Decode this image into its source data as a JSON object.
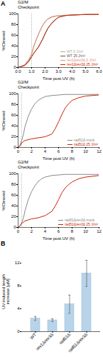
{
  "chart_data": [
    {
      "type": "line",
      "panel_label": "A",
      "title": "G2/M",
      "subtitle": "Checkpoint",
      "xlabel": "Time post UV (h)",
      "ylabel": "%Cleaved",
      "xlim": [
        0,
        6
      ],
      "ylim": [
        0,
        100
      ],
      "xticks": [
        0,
        1,
        2,
        3,
        4,
        5,
        6
      ],
      "yticks": [
        0,
        20,
        40,
        60,
        80,
        100
      ],
      "vline": 1.0,
      "legend": "lower right",
      "series": [
        {
          "name": "WT 0 J/m²",
          "color": "#b0a898",
          "x": [
            0,
            0.5,
            0.8,
            1.0,
            1.1,
            1.2,
            1.4,
            1.6,
            1.8,
            2.0,
            2.2,
            2.5,
            3.0,
            4.0,
            5.0,
            6.0
          ],
          "values": [
            0,
            5,
            15,
            25,
            34,
            42,
            55,
            67,
            77,
            85,
            90,
            94,
            97,
            98,
            99,
            99
          ]
        },
        {
          "name": "WT 25 J/m²",
          "color": "#555555",
          "x": [
            0,
            0.5,
            0.8,
            1.0,
            1.2,
            1.5,
            1.8,
            2.0,
            2.2,
            2.5,
            2.8,
            3.0,
            3.5,
            4.0,
            5.0,
            6.0
          ],
          "values": [
            0,
            4,
            12,
            20,
            28,
            38,
            52,
            63,
            73,
            83,
            90,
            94,
            97,
            98,
            99,
            99
          ]
        },
        {
          "name": "rev1Δrev3Δ 0 J/m²",
          "color": "#e09070",
          "x": [
            0,
            0.5,
            0.8,
            1.0,
            1.1,
            1.2,
            1.4,
            1.6,
            1.8,
            2.0,
            2.2,
            2.5,
            3.0,
            4.0,
            5.0,
            6.0
          ],
          "values": [
            0,
            5,
            15,
            25,
            35,
            43,
            56,
            68,
            78,
            86,
            91,
            95,
            97,
            98,
            99,
            99
          ]
        },
        {
          "name": "rev1Δrev3Δ 25 J/m²",
          "color": "#cc2200",
          "x": [
            0,
            0.5,
            0.8,
            1.0,
            1.2,
            1.5,
            1.8,
            2.0,
            2.2,
            2.5,
            2.8,
            3.0,
            3.5,
            4.0,
            5.0,
            6.0
          ],
          "values": [
            0,
            4,
            12,
            20,
            28,
            38,
            52,
            63,
            73,
            83,
            90,
            94,
            97,
            98,
            99,
            99
          ]
        }
      ]
    },
    {
      "type": "line",
      "title": "G2/M",
      "subtitle": "Checkpoint",
      "xlabel": "Time post UV (h)",
      "ylabel": "%Cleaved",
      "xlim": [
        0,
        12
      ],
      "ylim": [
        0,
        100
      ],
      "xticks": [
        0,
        2,
        4,
        6,
        8,
        10,
        12
      ],
      "yticks": [
        0,
        20,
        40,
        60,
        80,
        100
      ],
      "vline": 0.5,
      "legend": "lower right",
      "series": [
        {
          "name": "rad51Δ mock",
          "color": "#888888",
          "x": [
            0,
            0.3,
            0.5,
            0.8,
            1.0,
            1.5,
            2.0,
            2.5,
            3.0,
            3.5,
            4.0,
            5.0,
            6.0,
            7.0,
            8.0,
            10.0,
            12.0
          ],
          "values": [
            0,
            5,
            12,
            25,
            38,
            58,
            72,
            82,
            88,
            92,
            95,
            97,
            98,
            99,
            99,
            99,
            99
          ]
        },
        {
          "name": "rad51Δ 25 J/m²",
          "color": "#cc2200",
          "x": [
            0,
            0.3,
            0.5,
            1.0,
            2.0,
            3.0,
            4.0,
            5.0,
            5.5,
            6.0,
            6.5,
            7.0,
            7.5,
            8.0,
            9.0,
            10.0,
            12.0
          ],
          "values": [
            0,
            3,
            8,
            13,
            16,
            18,
            20,
            25,
            35,
            48,
            62,
            74,
            82,
            88,
            93,
            96,
            98
          ]
        }
      ]
    },
    {
      "type": "line",
      "title": "G2/M",
      "subtitle": "Checkpoint",
      "xlabel": "Time post UV (h)",
      "ylabel": "%Cleaved",
      "xlim": [
        0,
        12
      ],
      "ylim": [
        0,
        100
      ],
      "xticks": [
        0,
        2,
        4,
        6,
        8,
        10,
        12
      ],
      "yticks": [
        0,
        20,
        40,
        60,
        80,
        100
      ],
      "vline": 0.5,
      "legend": "lower right",
      "series": [
        {
          "name": "rad51Δrev3Δ mock",
          "color": "#888888",
          "x": [
            0,
            0.3,
            0.5,
            0.8,
            1.0,
            1.5,
            2.0,
            2.5,
            3.0,
            3.5,
            4.0,
            5.0,
            6.0,
            7.0,
            8.0,
            10.0,
            12.0
          ],
          "values": [
            0,
            3,
            8,
            18,
            30,
            52,
            67,
            78,
            86,
            91,
            94,
            97,
            98,
            99,
            99,
            99,
            99
          ]
        },
        {
          "name": "rad51Δrev3Δ 25 J/m²",
          "color": "#cc2200",
          "x": [
            0,
            0.3,
            0.5,
            1.0,
            2.0,
            3.0,
            4.0,
            5.0,
            5.5,
            6.0,
            6.5,
            7.0,
            7.5,
            8.0,
            8.5,
            9.0,
            10.0,
            12.0
          ],
          "values": [
            0,
            3,
            7,
            12,
            16,
            18,
            22,
            30,
            40,
            52,
            65,
            74,
            80,
            85,
            88,
            91,
            94,
            97
          ]
        }
      ]
    },
    {
      "type": "bar",
      "panel_label": "B",
      "categories": [
        "WT",
        "rev1Δrev3Δ",
        "rad51Δ",
        "rad51Δrev3Δ"
      ],
      "values": [
        2.3,
        2.0,
        4.8,
        10.2
      ],
      "errors": [
        0.35,
        0.25,
        1.6,
        2.3
      ],
      "color": "#b8d4ea",
      "ylabel": "UV-induced length\nincrease [µM]",
      "ylim": [
        0,
        14
      ],
      "yticks": [
        0,
        4,
        8,
        12
      ]
    }
  ]
}
